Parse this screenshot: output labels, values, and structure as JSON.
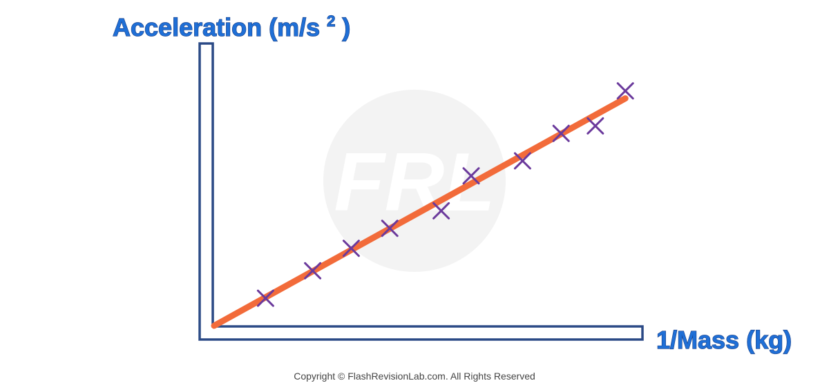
{
  "chart_data": {
    "type": "scatter",
    "title": "",
    "ylabel": "Acceleration (m/s",
    "ylabel_superscript": "2",
    "ylabel_close": ")",
    "xlabel": "1/Mass (kg)",
    "xlim": [
      0,
      10
    ],
    "ylim": [
      0,
      10
    ],
    "grid": false,
    "legend": "none",
    "series": [
      {
        "x": [
          1.2,
          2.3,
          3.2,
          4.1,
          5.3,
          6.0,
          7.2,
          8.1,
          8.9,
          9.6
        ],
        "y": [
          1.1,
          2.2,
          3.1,
          3.9,
          4.6,
          6.0,
          6.6,
          7.7,
          8.0,
          9.4
        ]
      }
    ],
    "trendline": {
      "x": [
        0,
        9.6
      ],
      "y": [
        0,
        9.1
      ]
    },
    "colors": {
      "axis": "#2b4a86",
      "markers": "#6b3a9c",
      "trendline": "#f26b3a",
      "label": "#1f6fd6"
    }
  },
  "watermark": {
    "text": "FRL"
  },
  "copyright": "Copyright © FlashRevisionLab.com. All Rights Reserved"
}
